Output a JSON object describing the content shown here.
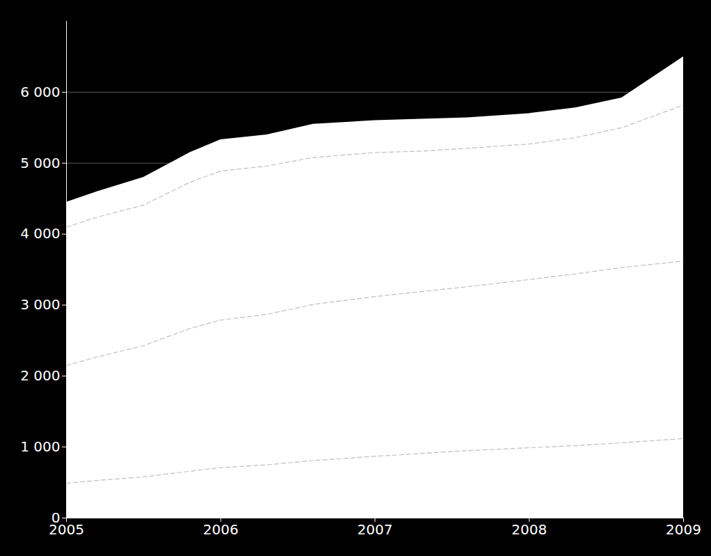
{
  "chart_data": {
    "type": "area",
    "x": [
      2005,
      2005.2,
      2005.5,
      2005.8,
      2006,
      2006.3,
      2006.6,
      2007,
      2007.3,
      2007.6,
      2008,
      2008.3,
      2008.6,
      2009
    ],
    "series": [
      {
        "type": "area",
        "color": "#ffffff",
        "values": [
          4450,
          4600,
          4800,
          5150,
          5330,
          5400,
          5550,
          5600,
          5620,
          5640,
          5700,
          5780,
          5920,
          6500
        ]
      },
      {
        "type": "line",
        "color": "#aaaaaa",
        "line_style": "dashed",
        "values": [
          4100,
          4240,
          4410,
          4730,
          4890,
          4960,
          5080,
          5150,
          5170,
          5210,
          5270,
          5360,
          5500,
          5820
        ]
      },
      {
        "type": "line",
        "color": "#aaaaaa",
        "line_style": "dashed",
        "values": [
          2150,
          2270,
          2430,
          2670,
          2790,
          2870,
          3010,
          3120,
          3190,
          3260,
          3360,
          3440,
          3530,
          3620
        ]
      },
      {
        "type": "line",
        "color": "#aaaaaa",
        "line_style": "dashed",
        "values": [
          490,
          530,
          580,
          660,
          710,
          750,
          810,
          870,
          910,
          950,
          990,
          1020,
          1060,
          1120
        ]
      }
    ],
    "xlim": [
      2005,
      2009
    ],
    "xticks": [
      2005,
      2006,
      2007,
      2008,
      2009
    ],
    "ylim": [
      0,
      7000
    ],
    "yticks": [
      0,
      {
        "value": 1000,
        "label": "1 000"
      },
      {
        "value": 2000,
        "label": "2 000"
      },
      {
        "value": 3000,
        "label": "3 000"
      },
      {
        "value": 4000,
        "label": "4 000"
      },
      {
        "value": 5000,
        "label": "5 000"
      },
      {
        "value": 6000,
        "label": "6 000"
      }
    ],
    "grid": true
  }
}
